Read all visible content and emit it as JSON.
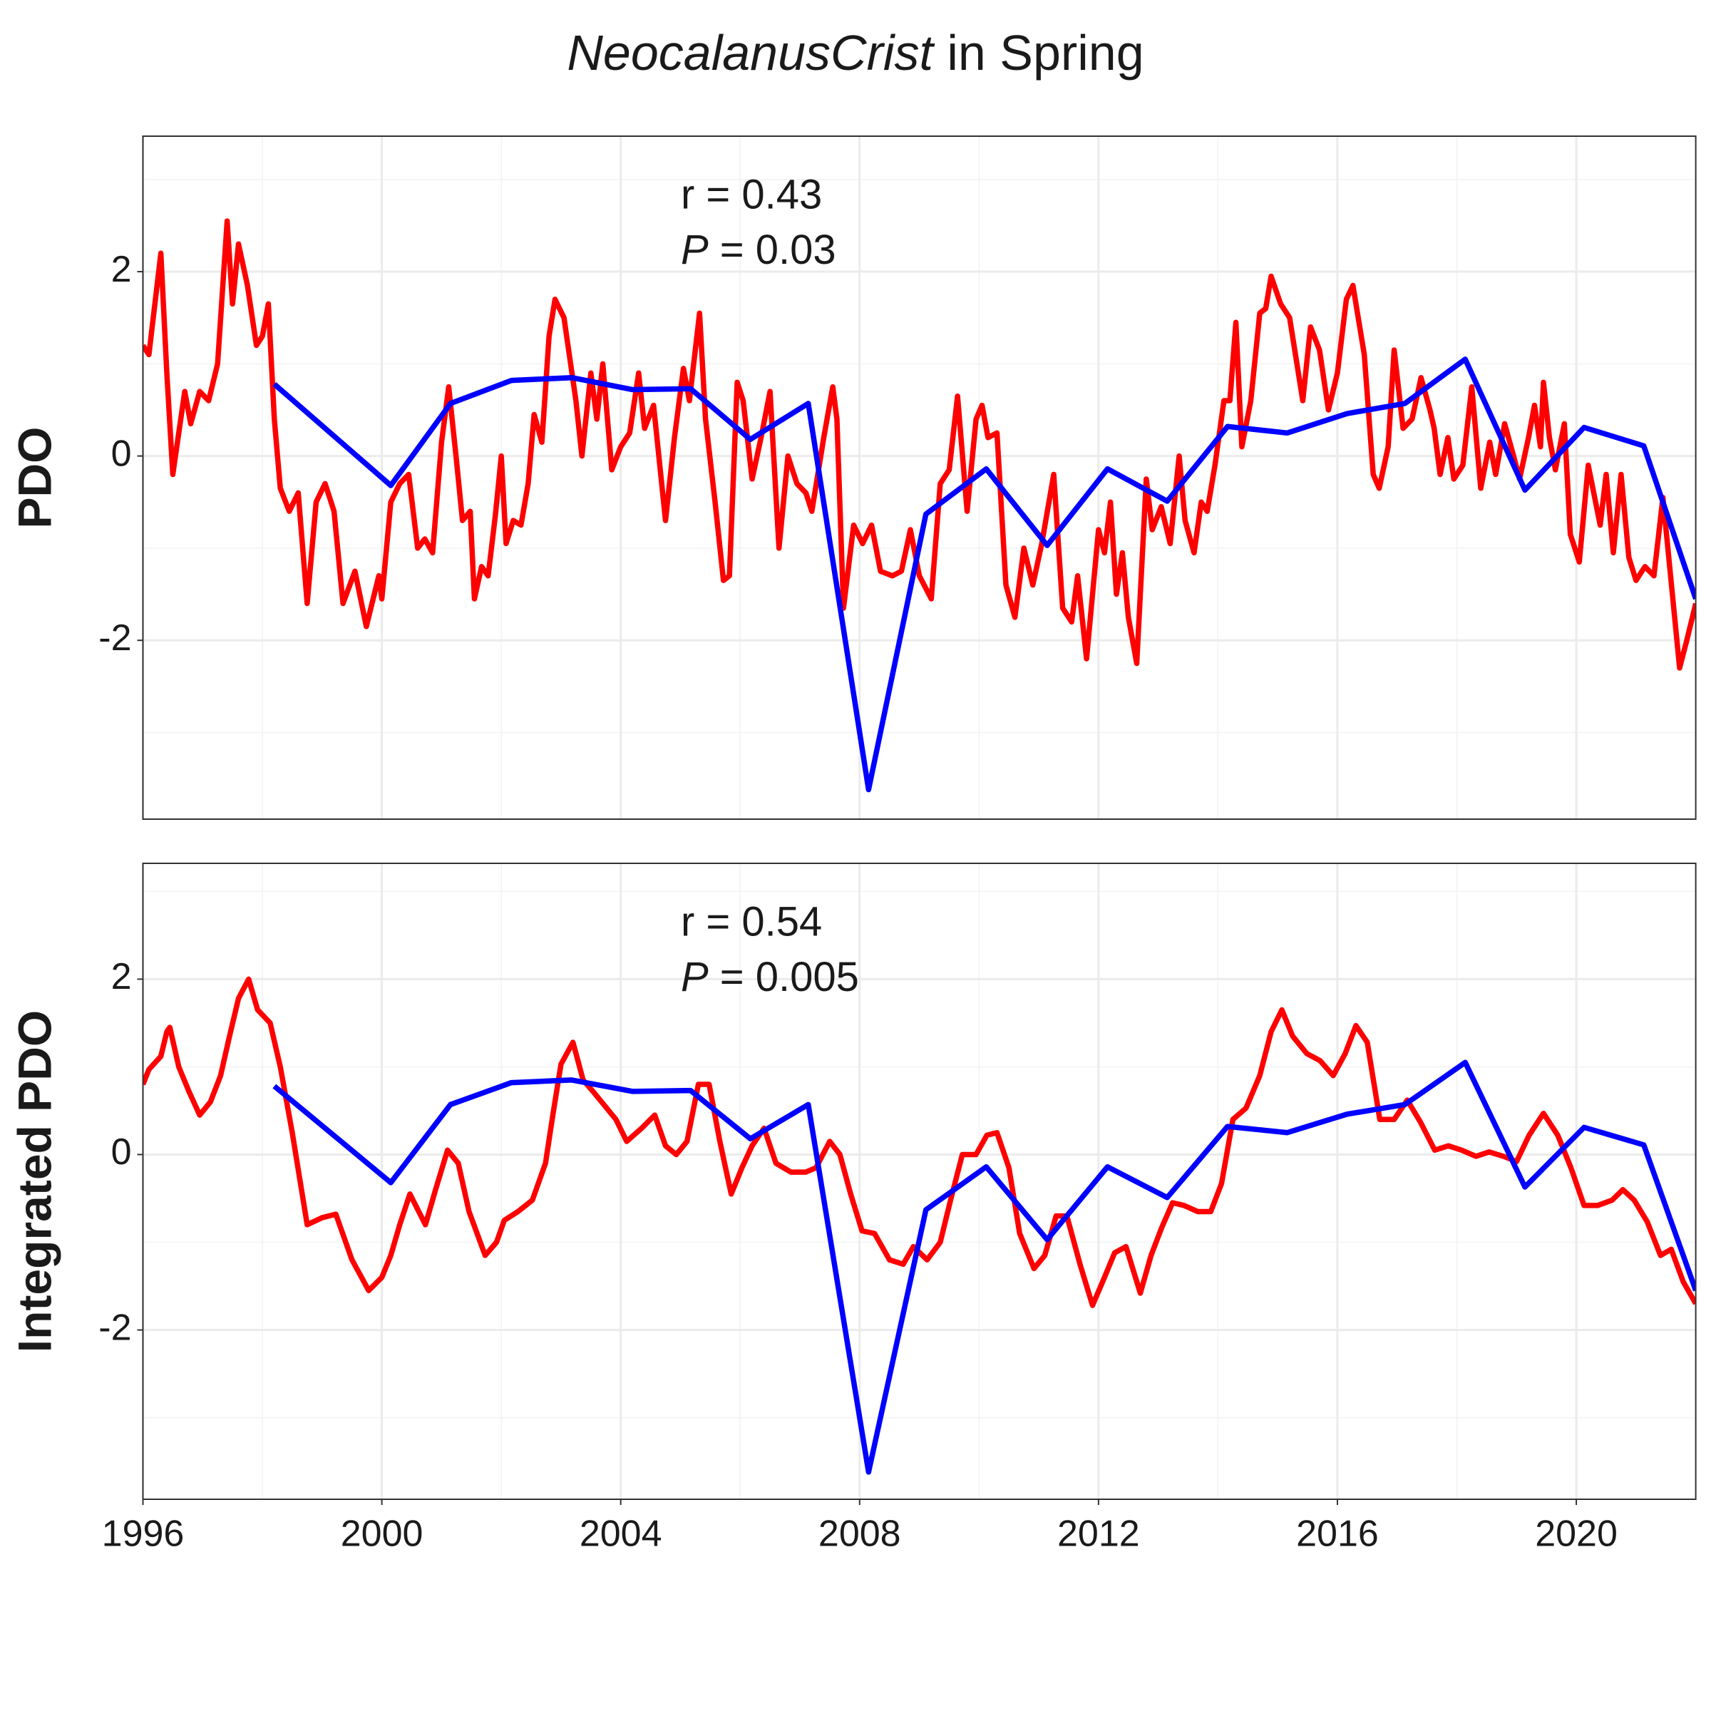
{
  "chart_data": [
    {
      "type": "line",
      "title": "NeocalanusCrist in Spring",
      "ylabel": "PDO",
      "annotations": [
        "r = 0.43",
        "P = 0.03"
      ],
      "xlim": [
        1996,
        2022
      ],
      "ylim": [
        -3.94,
        3.47
      ],
      "yticks": [
        -2,
        0,
        2
      ],
      "grid": true,
      "series": [
        {
          "color": "#ff0000",
          "x": [
            1996.0,
            1996.1,
            1996.3,
            1996.4,
            1996.5,
            1996.7,
            1996.8,
            1996.95,
            1997.1,
            1997.25,
            1997.41,
            1997.5,
            1997.6,
            1997.75,
            1997.9,
            1998.0,
            1998.1,
            1998.2,
            1998.3,
            1998.45,
            1998.6,
            1998.75,
            1998.9,
            1999.05,
            1999.2,
            1999.35,
            1999.55,
            1999.74,
            1999.95,
            2000.0,
            2000.15,
            2000.3,
            2000.45,
            2000.6,
            2000.72,
            2000.85,
            2001.0,
            2001.12,
            2001.25,
            2001.35,
            2001.48,
            2001.55,
            2001.67,
            2001.78,
            2001.9,
            2002.0,
            2002.08,
            2002.2,
            2002.33,
            2002.45,
            2002.55,
            2002.68,
            2002.8,
            2002.9,
            2003.05,
            2003.25,
            2003.35,
            2003.5,
            2003.6,
            2003.7,
            2003.85,
            2004.0,
            2004.15,
            2004.3,
            2004.4,
            2004.55,
            2004.75,
            2004.9,
            2005.05,
            2005.15,
            2005.32,
            2005.42,
            2005.58,
            2005.72,
            2005.82,
            2005.95,
            2006.05,
            2006.2,
            2006.35,
            2006.5,
            2006.65,
            2006.8,
            2006.95,
            2007.1,
            2007.2,
            2007.4,
            2007.55,
            2007.62,
            2007.73,
            2007.9,
            2008.05,
            2008.2,
            2008.35,
            2008.55,
            2008.7,
            2008.85,
            2009.0,
            2009.2,
            2009.35,
            2009.5,
            2009.64,
            2009.8,
            2009.95,
            2010.05,
            2010.15,
            2010.3,
            2010.45,
            2010.6,
            2010.75,
            2010.9,
            2011.05,
            2011.25,
            2011.4,
            2011.55,
            2011.65,
            2011.8,
            2012.0,
            2012.1,
            2012.2,
            2012.3,
            2012.4,
            2012.5,
            2012.64,
            2012.8,
            2012.9,
            2013.05,
            2013.2,
            2013.35,
            2013.45,
            2013.6,
            2013.72,
            2013.82,
            2013.95,
            2014.1,
            2014.2,
            2014.3,
            2014.4,
            2014.55,
            2014.7,
            2014.8,
            2014.89,
            2015.05,
            2015.2,
            2015.42,
            2015.55,
            2015.7,
            2015.85,
            2016.0,
            2016.15,
            2016.26,
            2016.45,
            2016.6,
            2016.7,
            2016.85,
            2016.95,
            2017.1,
            2017.25,
            2017.4,
            2017.55,
            2017.62,
            2017.72,
            2017.85,
            2017.95,
            2018.1,
            2018.25,
            2018.4,
            2018.55,
            2018.65,
            2018.8,
            2018.95,
            2019.05,
            2019.2,
            2019.3,
            2019.4,
            2019.45,
            2019.55,
            2019.65,
            2019.8,
            2019.9,
            2020.05,
            2020.2,
            2020.4,
            2020.5,
            2020.62,
            2020.75,
            2020.88,
            2021.0,
            2021.15,
            2021.3,
            2021.45,
            2021.73,
            2021.85,
            2022.0
          ],
          "values": [
            1.2,
            1.1,
            2.2,
            0.9,
            -0.2,
            0.7,
            0.35,
            0.7,
            0.6,
            1.0,
            2.55,
            1.65,
            2.3,
            1.85,
            1.2,
            1.3,
            1.65,
            0.4,
            -0.35,
            -0.6,
            -0.4,
            -1.6,
            -0.5,
            -0.3,
            -0.6,
            -1.6,
            -1.25,
            -1.85,
            -1.3,
            -1.55,
            -0.5,
            -0.3,
            -0.2,
            -1.0,
            -0.9,
            -1.05,
            0.15,
            0.75,
            -0.05,
            -0.7,
            -0.6,
            -1.55,
            -1.2,
            -1.3,
            -0.65,
            0.0,
            -0.95,
            -0.7,
            -0.75,
            -0.3,
            0.45,
            0.15,
            1.3,
            1.7,
            1.5,
            0.6,
            0.0,
            0.9,
            0.4,
            1.0,
            -0.15,
            0.1,
            0.25,
            0.9,
            0.3,
            0.55,
            -0.7,
            0.2,
            0.95,
            0.6,
            1.55,
            0.4,
            -0.5,
            -1.35,
            -1.3,
            0.8,
            0.6,
            -0.25,
            0.2,
            0.7,
            -1.0,
            0.0,
            -0.3,
            -0.4,
            -0.6,
            0.2,
            0.75,
            0.4,
            -1.65,
            -0.75,
            -0.95,
            -0.75,
            -1.25,
            -1.3,
            -1.25,
            -0.8,
            -1.3,
            -1.55,
            -0.3,
            -0.15,
            0.65,
            -0.6,
            0.4,
            0.55,
            0.2,
            0.25,
            -1.4,
            -1.75,
            -1.0,
            -1.4,
            -0.95,
            -0.2,
            -1.65,
            -1.8,
            -1.3,
            -2.2,
            -0.8,
            -1.05,
            -0.5,
            -1.5,
            -1.05,
            -1.75,
            -2.25,
            -0.25,
            -0.8,
            -0.55,
            -0.95,
            0.0,
            -0.7,
            -1.05,
            -0.5,
            -0.6,
            -0.1,
            0.6,
            0.6,
            1.45,
            0.1,
            0.6,
            1.55,
            1.6,
            1.95,
            1.65,
            1.5,
            0.6,
            1.4,
            1.15,
            0.5,
            0.9,
            1.7,
            1.85,
            1.1,
            -0.2,
            -0.35,
            0.1,
            1.15,
            0.3,
            0.4,
            0.85,
            0.5,
            0.3,
            -0.2,
            0.2,
            -0.25,
            -0.1,
            0.75,
            -0.35,
            0.15,
            -0.2,
            0.35,
            0.0,
            -0.25,
            0.2,
            0.55,
            0.1,
            0.8,
            0.2,
            -0.15,
            0.35,
            -0.85,
            -1.15,
            -0.1,
            -0.75,
            -0.2,
            -1.05,
            -0.2,
            -1.1,
            -1.35,
            -1.2,
            -1.3,
            -0.45,
            -2.3,
            -2.0,
            -1.6
          ]
        },
        {
          "color": "#0000ff",
          "x": [
            1998.2,
            2000.15,
            2001.15,
            2002.17,
            2003.18,
            2004.2,
            2005.17,
            2006.17,
            2007.14,
            2008.15,
            2009.11,
            2010.12,
            2011.14,
            2012.15,
            2013.15,
            2014.16,
            2015.16,
            2016.16,
            2017.13,
            2018.14,
            2019.14,
            2020.13,
            2021.13,
            2022.0
          ],
          "values": [
            0.78,
            -0.32,
            0.57,
            0.82,
            0.85,
            0.72,
            0.73,
            0.18,
            0.57,
            -3.62,
            -0.63,
            -0.14,
            -0.97,
            -0.14,
            -0.49,
            0.32,
            0.25,
            0.46,
            0.57,
            1.05,
            -0.37,
            0.31,
            0.11,
            -1.55
          ]
        }
      ]
    },
    {
      "type": "line",
      "ylabel": "Integrated PDO",
      "annotations": [
        "r = 0.54",
        "P = 0.005"
      ],
      "xlim": [
        1996,
        2022
      ],
      "xticks": [
        1996,
        2000,
        2004,
        2008,
        2012,
        2016,
        2020
      ],
      "ylim": [
        -3.93,
        3.32
      ],
      "yticks": [
        -2,
        0,
        2
      ],
      "grid": true,
      "series": [
        {
          "color": "#ff0000",
          "x": [
            1996.0,
            1996.1,
            1996.3,
            1996.4,
            1996.45,
            1996.6,
            1996.77,
            1996.95,
            1997.13,
            1997.3,
            1997.45,
            1997.6,
            1997.77,
            1997.92,
            1998.13,
            1998.3,
            1998.5,
            1998.75,
            1999.0,
            1999.23,
            1999.5,
            1999.78,
            2000.0,
            2000.15,
            2000.3,
            2000.47,
            2000.73,
            2000.9,
            2001.1,
            2001.28,
            2001.46,
            2001.73,
            2001.92,
            2002.05,
            2002.28,
            2002.52,
            2002.74,
            2002.87,
            2003.0,
            2003.2,
            2003.37,
            2003.56,
            2003.74,
            2003.92,
            2004.1,
            2004.35,
            2004.57,
            2004.75,
            2004.93,
            2005.11,
            2005.3,
            2005.48,
            2005.66,
            2005.85,
            2006.03,
            2006.2,
            2006.4,
            2006.6,
            2006.85,
            2007.1,
            2007.27,
            2007.5,
            2007.67,
            2007.85,
            2008.04,
            2008.25,
            2008.5,
            2008.73,
            2008.9,
            2009.13,
            2009.35,
            2009.53,
            2009.72,
            2009.95,
            2010.13,
            2010.3,
            2010.5,
            2010.68,
            2010.92,
            2011.1,
            2011.29,
            2011.47,
            2011.69,
            2011.9,
            2012.1,
            2012.27,
            2012.46,
            2012.7,
            2012.88,
            2013.06,
            2013.24,
            2013.43,
            2013.66,
            2013.88,
            2014.06,
            2014.25,
            2014.47,
            2014.7,
            2014.89,
            2015.07,
            2015.25,
            2015.49,
            2015.71,
            2015.93,
            2016.13,
            2016.31,
            2016.5,
            2016.71,
            2016.95,
            2017.17,
            2017.39,
            2017.63,
            2017.86,
            2018.08,
            2018.32,
            2018.54,
            2018.78,
            2019.0,
            2019.21,
            2019.45,
            2019.69,
            2019.91,
            2020.13,
            2020.36,
            2020.6,
            2020.78,
            2020.97,
            2021.19,
            2021.41,
            2021.59,
            2021.79,
            2022.0
          ],
          "values": [
            0.8,
            0.97,
            1.12,
            1.4,
            1.45,
            1.0,
            0.72,
            0.45,
            0.6,
            0.9,
            1.35,
            1.78,
            2.0,
            1.65,
            1.5,
            1.0,
            0.25,
            -0.8,
            -0.72,
            -0.68,
            -1.2,
            -1.55,
            -1.4,
            -1.15,
            -0.8,
            -0.45,
            -0.8,
            -0.4,
            0.05,
            -0.1,
            -0.65,
            -1.15,
            -1.0,
            -0.75,
            -0.65,
            -0.52,
            -0.1,
            0.48,
            1.03,
            1.28,
            0.85,
            0.7,
            0.55,
            0.4,
            0.15,
            0.3,
            0.45,
            0.1,
            0.0,
            0.15,
            0.8,
            0.8,
            0.15,
            -0.45,
            -0.15,
            0.1,
            0.3,
            -0.1,
            -0.2,
            -0.2,
            -0.15,
            0.15,
            0.0,
            -0.45,
            -0.87,
            -0.9,
            -1.2,
            -1.25,
            -1.05,
            -1.2,
            -1.0,
            -0.5,
            0.0,
            0.0,
            0.22,
            0.25,
            -0.15,
            -0.9,
            -1.3,
            -1.15,
            -0.7,
            -0.7,
            -1.25,
            -1.72,
            -1.4,
            -1.12,
            -1.05,
            -1.58,
            -1.15,
            -0.83,
            -0.55,
            -0.58,
            -0.65,
            -0.65,
            -0.33,
            0.4,
            0.53,
            0.9,
            1.4,
            1.65,
            1.35,
            1.15,
            1.07,
            0.9,
            1.15,
            1.47,
            1.28,
            0.4,
            0.4,
            0.62,
            0.37,
            0.05,
            0.1,
            0.05,
            -0.02,
            0.03,
            -0.02,
            -0.08,
            0.22,
            0.47,
            0.22,
            -0.15,
            -0.58,
            -0.58,
            -0.52,
            -0.4,
            -0.52,
            -0.77,
            -1.15,
            -1.08,
            -1.45,
            -1.7
          ]
        },
        {
          "color": "#0000ff",
          "x": [
            1998.2,
            2000.15,
            2001.15,
            2002.17,
            2003.18,
            2004.2,
            2005.17,
            2006.17,
            2007.14,
            2008.15,
            2009.11,
            2010.12,
            2011.14,
            2012.15,
            2013.15,
            2014.16,
            2015.16,
            2016.16,
            2017.13,
            2018.14,
            2019.14,
            2020.13,
            2021.13,
            2022.0
          ],
          "values": [
            0.78,
            -0.32,
            0.57,
            0.82,
            0.85,
            0.72,
            0.73,
            0.18,
            0.57,
            -3.62,
            -0.63,
            -0.14,
            -0.97,
            -0.14,
            -0.49,
            0.32,
            0.25,
            0.46,
            0.57,
            1.05,
            -0.37,
            0.31,
            0.11,
            -1.55
          ]
        }
      ]
    }
  ]
}
